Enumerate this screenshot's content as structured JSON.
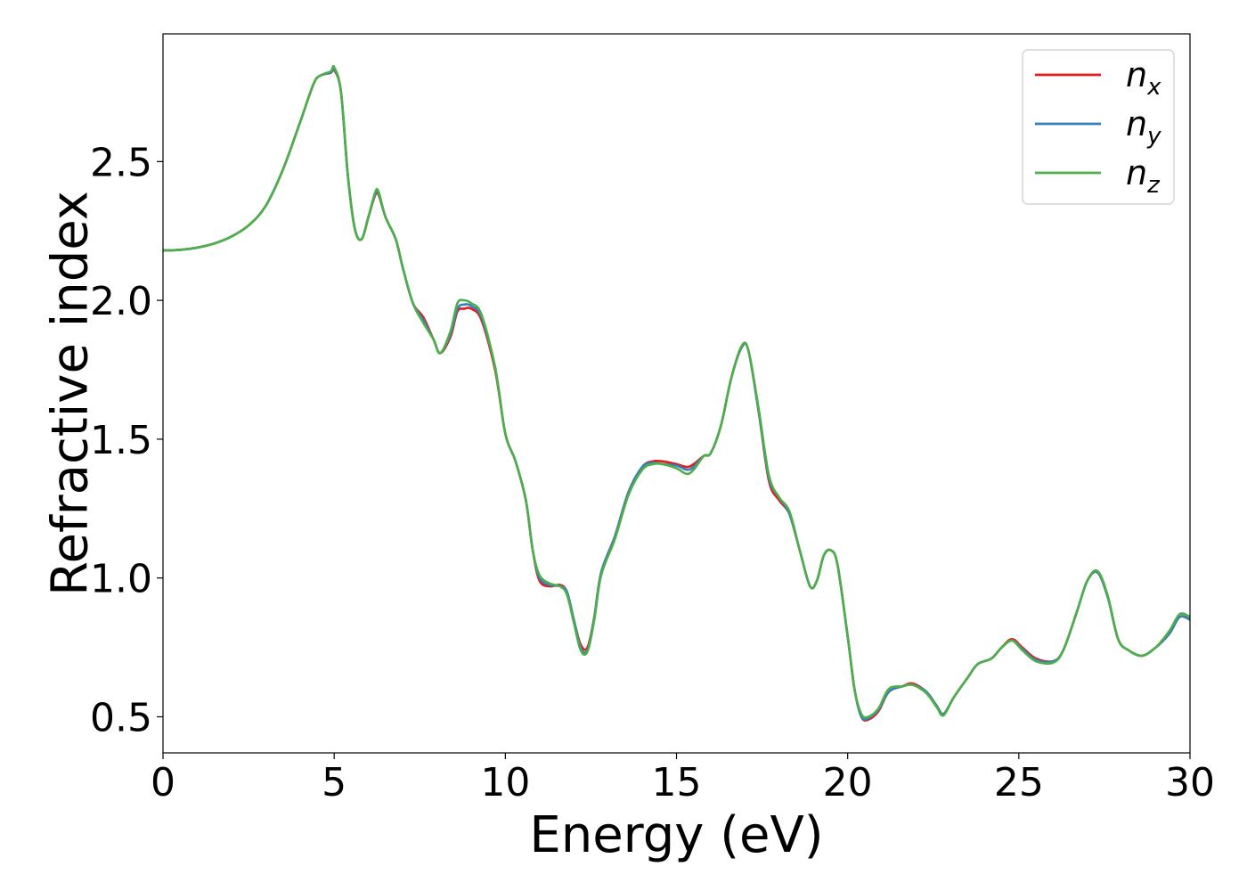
{
  "chart_data": {
    "type": "line",
    "title": "",
    "xlabel": "Energy (eV)",
    "ylabel": "Refractive index",
    "xlim": [
      0,
      30
    ],
    "ylim": [
      0.37,
      2.96
    ],
    "xticks": [
      0,
      5,
      10,
      15,
      20,
      25,
      30
    ],
    "yticks": [
      0.5,
      1.0,
      1.5,
      2.0,
      2.5
    ],
    "xtick_labels": [
      "0",
      "5",
      "10",
      "15",
      "20",
      "25",
      "30"
    ],
    "ytick_labels": [
      "0.5",
      "1.0",
      "1.5",
      "2.0",
      "2.5"
    ],
    "grid": false,
    "legend_position": "top-right",
    "series": [
      {
        "name": "n",
        "sub": "x",
        "color": "#e41a1c",
        "points": [
          [
            0,
            2.18
          ],
          [
            0.5,
            2.182
          ],
          [
            1,
            2.19
          ],
          [
            1.5,
            2.205
          ],
          [
            2,
            2.23
          ],
          [
            2.5,
            2.27
          ],
          [
            3,
            2.34
          ],
          [
            3.5,
            2.47
          ],
          [
            4,
            2.64
          ],
          [
            4.4,
            2.78
          ],
          [
            4.6,
            2.81
          ],
          [
            4.9,
            2.82
          ],
          [
            5.0,
            2.83
          ],
          [
            5.2,
            2.75
          ],
          [
            5.4,
            2.45
          ],
          [
            5.6,
            2.26
          ],
          [
            5.8,
            2.22
          ],
          [
            6.0,
            2.3
          ],
          [
            6.2,
            2.38
          ],
          [
            6.3,
            2.38
          ],
          [
            6.5,
            2.3
          ],
          [
            6.8,
            2.22
          ],
          [
            7.0,
            2.12
          ],
          [
            7.3,
            1.99
          ],
          [
            7.6,
            1.94
          ],
          [
            7.9,
            1.86
          ],
          [
            8.1,
            1.81
          ],
          [
            8.4,
            1.87
          ],
          [
            8.6,
            1.96
          ],
          [
            8.8,
            1.97
          ],
          [
            9.0,
            1.97
          ],
          [
            9.3,
            1.93
          ],
          [
            9.7,
            1.75
          ],
          [
            10.0,
            1.52
          ],
          [
            10.3,
            1.42
          ],
          [
            10.6,
            1.28
          ],
          [
            10.8,
            1.1
          ],
          [
            11.0,
            0.99
          ],
          [
            11.3,
            0.97
          ],
          [
            11.6,
            0.975
          ],
          [
            11.8,
            0.95
          ],
          [
            12.0,
            0.85
          ],
          [
            12.2,
            0.76
          ],
          [
            12.4,
            0.75
          ],
          [
            12.6,
            0.86
          ],
          [
            12.8,
            1.02
          ],
          [
            13.2,
            1.15
          ],
          [
            13.6,
            1.31
          ],
          [
            14.0,
            1.4
          ],
          [
            14.3,
            1.42
          ],
          [
            14.6,
            1.42
          ],
          [
            15.0,
            1.41
          ],
          [
            15.3,
            1.4
          ],
          [
            15.5,
            1.41
          ],
          [
            15.8,
            1.44
          ],
          [
            16.0,
            1.45
          ],
          [
            16.3,
            1.55
          ],
          [
            16.6,
            1.72
          ],
          [
            16.9,
            1.83
          ],
          [
            17.1,
            1.82
          ],
          [
            17.4,
            1.6
          ],
          [
            17.7,
            1.35
          ],
          [
            18.0,
            1.28
          ],
          [
            18.3,
            1.23
          ],
          [
            18.6,
            1.1
          ],
          [
            18.9,
            0.97
          ],
          [
            19.1,
            0.99
          ],
          [
            19.3,
            1.08
          ],
          [
            19.5,
            1.1
          ],
          [
            19.7,
            1.05
          ],
          [
            20.0,
            0.79
          ],
          [
            20.2,
            0.6
          ],
          [
            20.4,
            0.5
          ],
          [
            20.6,
            0.49
          ],
          [
            20.9,
            0.52
          ],
          [
            21.2,
            0.59
          ],
          [
            21.6,
            0.61
          ],
          [
            21.9,
            0.62
          ],
          [
            22.3,
            0.59
          ],
          [
            22.6,
            0.54
          ],
          [
            22.8,
            0.51
          ],
          [
            23.1,
            0.57
          ],
          [
            23.5,
            0.64
          ],
          [
            23.8,
            0.69
          ],
          [
            24.2,
            0.71
          ],
          [
            24.5,
            0.75
          ],
          [
            24.8,
            0.78
          ],
          [
            25.1,
            0.75
          ],
          [
            25.5,
            0.71
          ],
          [
            26.0,
            0.7
          ],
          [
            26.3,
            0.74
          ],
          [
            26.7,
            0.88
          ],
          [
            27.0,
            0.99
          ],
          [
            27.3,
            1.02
          ],
          [
            27.6,
            0.93
          ],
          [
            27.9,
            0.78
          ],
          [
            28.2,
            0.74
          ],
          [
            28.6,
            0.72
          ],
          [
            29.0,
            0.75
          ],
          [
            29.4,
            0.8
          ],
          [
            29.7,
            0.86
          ],
          [
            30.0,
            0.85
          ]
        ]
      },
      {
        "name": "n",
        "sub": "y",
        "color": "#377eb8",
        "points": [
          [
            0,
            2.18
          ],
          [
            0.5,
            2.182
          ],
          [
            1,
            2.19
          ],
          [
            1.5,
            2.205
          ],
          [
            2,
            2.23
          ],
          [
            2.5,
            2.27
          ],
          [
            3,
            2.34
          ],
          [
            3.5,
            2.47
          ],
          [
            4,
            2.64
          ],
          [
            4.4,
            2.78
          ],
          [
            4.6,
            2.81
          ],
          [
            4.9,
            2.82
          ],
          [
            5.0,
            2.835
          ],
          [
            5.2,
            2.75
          ],
          [
            5.4,
            2.45
          ],
          [
            5.6,
            2.26
          ],
          [
            5.8,
            2.22
          ],
          [
            6.0,
            2.3
          ],
          [
            6.2,
            2.385
          ],
          [
            6.3,
            2.385
          ],
          [
            6.5,
            2.3
          ],
          [
            6.8,
            2.22
          ],
          [
            7.0,
            2.12
          ],
          [
            7.3,
            1.99
          ],
          [
            7.6,
            1.93
          ],
          [
            7.9,
            1.86
          ],
          [
            8.1,
            1.81
          ],
          [
            8.4,
            1.88
          ],
          [
            8.6,
            1.97
          ],
          [
            8.8,
            1.985
          ],
          [
            9.0,
            1.98
          ],
          [
            9.3,
            1.94
          ],
          [
            9.7,
            1.76
          ],
          [
            10.0,
            1.52
          ],
          [
            10.3,
            1.42
          ],
          [
            10.6,
            1.28
          ],
          [
            10.8,
            1.1
          ],
          [
            11.0,
            1.0
          ],
          [
            11.3,
            0.975
          ],
          [
            11.6,
            0.97
          ],
          [
            11.8,
            0.95
          ],
          [
            12.0,
            0.85
          ],
          [
            12.2,
            0.75
          ],
          [
            12.4,
            0.74
          ],
          [
            12.6,
            0.86
          ],
          [
            12.8,
            1.02
          ],
          [
            13.2,
            1.15
          ],
          [
            13.6,
            1.31
          ],
          [
            14.0,
            1.4
          ],
          [
            14.3,
            1.415
          ],
          [
            14.6,
            1.41
          ],
          [
            15.0,
            1.405
          ],
          [
            15.3,
            1.39
          ],
          [
            15.5,
            1.4
          ],
          [
            15.8,
            1.44
          ],
          [
            16.0,
            1.45
          ],
          [
            16.3,
            1.55
          ],
          [
            16.6,
            1.72
          ],
          [
            16.9,
            1.83
          ],
          [
            17.1,
            1.82
          ],
          [
            17.4,
            1.6
          ],
          [
            17.7,
            1.36
          ],
          [
            18.0,
            1.29
          ],
          [
            18.3,
            1.23
          ],
          [
            18.6,
            1.1
          ],
          [
            18.9,
            0.97
          ],
          [
            19.1,
            0.99
          ],
          [
            19.3,
            1.08
          ],
          [
            19.5,
            1.1
          ],
          [
            19.7,
            1.05
          ],
          [
            20.0,
            0.79
          ],
          [
            20.2,
            0.6
          ],
          [
            20.4,
            0.5
          ],
          [
            20.6,
            0.495
          ],
          [
            20.9,
            0.525
          ],
          [
            21.2,
            0.59
          ],
          [
            21.6,
            0.61
          ],
          [
            21.9,
            0.615
          ],
          [
            22.3,
            0.59
          ],
          [
            22.6,
            0.54
          ],
          [
            22.8,
            0.51
          ],
          [
            23.1,
            0.57
          ],
          [
            23.5,
            0.64
          ],
          [
            23.8,
            0.69
          ],
          [
            24.2,
            0.71
          ],
          [
            24.5,
            0.75
          ],
          [
            24.8,
            0.775
          ],
          [
            25.1,
            0.745
          ],
          [
            25.5,
            0.705
          ],
          [
            26.0,
            0.7
          ],
          [
            26.3,
            0.74
          ],
          [
            26.7,
            0.88
          ],
          [
            27.0,
            0.99
          ],
          [
            27.3,
            1.02
          ],
          [
            27.6,
            0.93
          ],
          [
            27.9,
            0.78
          ],
          [
            28.2,
            0.74
          ],
          [
            28.6,
            0.72
          ],
          [
            29.0,
            0.75
          ],
          [
            29.4,
            0.8
          ],
          [
            29.7,
            0.86
          ],
          [
            30.0,
            0.85
          ]
        ]
      },
      {
        "name": "n",
        "sub": "z",
        "color": "#4daf4a",
        "points": [
          [
            0,
            2.18
          ],
          [
            0.5,
            2.182
          ],
          [
            1,
            2.19
          ],
          [
            1.5,
            2.205
          ],
          [
            2,
            2.23
          ],
          [
            2.5,
            2.27
          ],
          [
            3,
            2.34
          ],
          [
            3.5,
            2.47
          ],
          [
            4,
            2.64
          ],
          [
            4.4,
            2.78
          ],
          [
            4.6,
            2.81
          ],
          [
            4.9,
            2.825
          ],
          [
            5.0,
            2.84
          ],
          [
            5.2,
            2.75
          ],
          [
            5.4,
            2.45
          ],
          [
            5.6,
            2.26
          ],
          [
            5.8,
            2.22
          ],
          [
            6.0,
            2.3
          ],
          [
            6.2,
            2.39
          ],
          [
            6.3,
            2.39
          ],
          [
            6.5,
            2.3
          ],
          [
            6.8,
            2.22
          ],
          [
            7.0,
            2.12
          ],
          [
            7.3,
            1.99
          ],
          [
            7.6,
            1.92
          ],
          [
            7.9,
            1.86
          ],
          [
            8.1,
            1.81
          ],
          [
            8.4,
            1.89
          ],
          [
            8.6,
            1.99
          ],
          [
            8.8,
            2.0
          ],
          [
            9.0,
            1.99
          ],
          [
            9.3,
            1.95
          ],
          [
            9.7,
            1.76
          ],
          [
            10.0,
            1.52
          ],
          [
            10.3,
            1.42
          ],
          [
            10.6,
            1.28
          ],
          [
            10.8,
            1.1
          ],
          [
            11.0,
            1.01
          ],
          [
            11.3,
            0.98
          ],
          [
            11.6,
            0.97
          ],
          [
            11.8,
            0.94
          ],
          [
            12.0,
            0.84
          ],
          [
            12.2,
            0.74
          ],
          [
            12.4,
            0.735
          ],
          [
            12.6,
            0.85
          ],
          [
            12.8,
            1.01
          ],
          [
            13.2,
            1.14
          ],
          [
            13.6,
            1.3
          ],
          [
            14.0,
            1.39
          ],
          [
            14.3,
            1.41
          ],
          [
            14.6,
            1.41
          ],
          [
            15.0,
            1.395
          ],
          [
            15.3,
            1.375
          ],
          [
            15.5,
            1.39
          ],
          [
            15.8,
            1.44
          ],
          [
            16.0,
            1.45
          ],
          [
            16.3,
            1.55
          ],
          [
            16.6,
            1.72
          ],
          [
            16.9,
            1.835
          ],
          [
            17.1,
            1.82
          ],
          [
            17.4,
            1.61
          ],
          [
            17.7,
            1.37
          ],
          [
            18.0,
            1.29
          ],
          [
            18.3,
            1.24
          ],
          [
            18.6,
            1.1
          ],
          [
            18.9,
            0.97
          ],
          [
            19.1,
            0.99
          ],
          [
            19.3,
            1.08
          ],
          [
            19.5,
            1.1
          ],
          [
            19.7,
            1.05
          ],
          [
            20.0,
            0.79
          ],
          [
            20.2,
            0.6
          ],
          [
            20.4,
            0.51
          ],
          [
            20.6,
            0.5
          ],
          [
            20.9,
            0.53
          ],
          [
            21.2,
            0.6
          ],
          [
            21.6,
            0.61
          ],
          [
            21.9,
            0.615
          ],
          [
            22.3,
            0.585
          ],
          [
            22.6,
            0.535
          ],
          [
            22.8,
            0.505
          ],
          [
            23.1,
            0.57
          ],
          [
            23.5,
            0.64
          ],
          [
            23.8,
            0.69
          ],
          [
            24.2,
            0.71
          ],
          [
            24.5,
            0.75
          ],
          [
            24.8,
            0.775
          ],
          [
            25.1,
            0.74
          ],
          [
            25.5,
            0.7
          ],
          [
            26.0,
            0.695
          ],
          [
            26.3,
            0.74
          ],
          [
            26.7,
            0.88
          ],
          [
            27.0,
            0.99
          ],
          [
            27.3,
            1.025
          ],
          [
            27.6,
            0.935
          ],
          [
            27.9,
            0.78
          ],
          [
            28.2,
            0.74
          ],
          [
            28.6,
            0.72
          ],
          [
            29.0,
            0.75
          ],
          [
            29.4,
            0.81
          ],
          [
            29.7,
            0.87
          ],
          [
            30.0,
            0.86
          ]
        ]
      }
    ]
  }
}
